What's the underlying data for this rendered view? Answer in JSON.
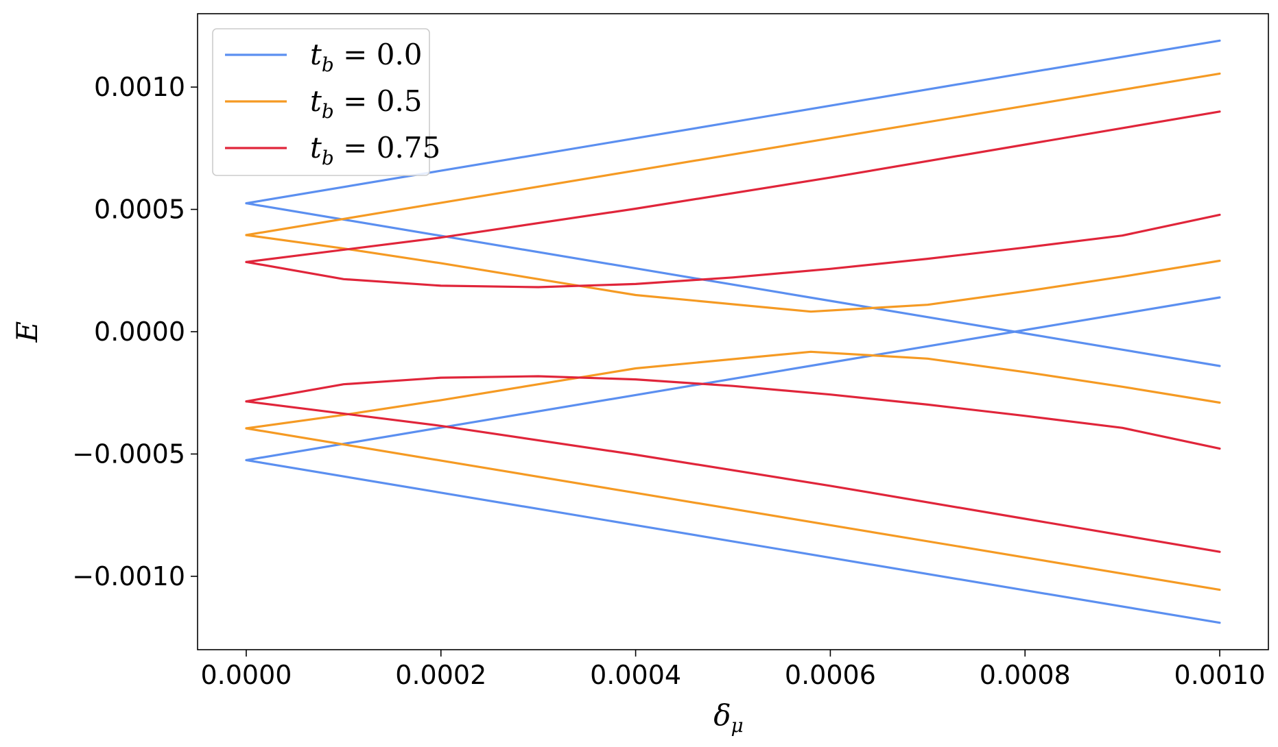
{
  "chart_data": {
    "type": "line",
    "title": "",
    "xlabel": "δ",
    "xlabel_sub": "μ",
    "ylabel": "E",
    "xlim": [
      -5e-05,
      0.00105
    ],
    "ylim": [
      -0.0013,
      0.0013
    ],
    "x_ticks": [
      0.0,
      0.0002,
      0.0004,
      0.0006,
      0.0008,
      0.001
    ],
    "x_tick_labels": [
      "0.0000",
      "0.0002",
      "0.0004",
      "0.0006",
      "0.0008",
      "0.0010"
    ],
    "y_ticks": [
      -0.001,
      -0.0005,
      0.0,
      0.0005,
      0.001
    ],
    "y_tick_labels": [
      "−0.0010",
      "−0.0005",
      "0.0000",
      "0.0005",
      "0.0010"
    ],
    "grid": false,
    "legend_position": "top-left",
    "series": [
      {
        "name": "t_b = 0.0",
        "legend_var": "t",
        "legend_sub": "b",
        "legend_value": "0.0",
        "color": "#5b8ff0",
        "branches": [
          {
            "x": [
              0.0,
              0.0002,
              0.0004,
              0.0006,
              0.0008,
              0.001
            ],
            "y": [
              0.000525,
              0.000658,
              0.000791,
              0.000924,
              0.001057,
              0.00119
            ]
          },
          {
            "x": [
              0.0,
              0.0002,
              0.0004,
              0.0006,
              0.0008,
              0.001
            ],
            "y": [
              0.000525,
              0.000392,
              0.000259,
              0.000126,
              -7e-06,
              -0.00014
            ]
          },
          {
            "x": [
              0.0,
              0.0002,
              0.0004,
              0.0006,
              0.0008,
              0.001
            ],
            "y": [
              -0.000525,
              -0.000392,
              -0.000259,
              -0.000126,
              7e-06,
              0.00014
            ]
          },
          {
            "x": [
              0.0,
              0.0002,
              0.0004,
              0.0006,
              0.0008,
              0.001
            ],
            "y": [
              -0.000525,
              -0.000658,
              -0.000791,
              -0.000924,
              -0.001057,
              -0.00119
            ]
          }
        ]
      },
      {
        "name": "t_b = 0.5",
        "legend_var": "t",
        "legend_sub": "b",
        "legend_value": "0.5",
        "color": "#f59a23",
        "branches": [
          {
            "x": [
              0.0,
              0.0002,
              0.0004,
              0.0006,
              0.0008,
              0.001
            ],
            "y": [
              0.000395,
              0.000527,
              0.000659,
              0.000791,
              0.000923,
              0.001055
            ]
          },
          {
            "x": [
              0.0,
              0.0001,
              0.0002,
              0.0003,
              0.0004,
              0.00058,
              0.0007,
              0.0008,
              0.0009,
              0.001
            ],
            "y": [
              0.000395,
              0.00034,
              0.00028,
              0.000215,
              0.00015,
              8.2e-05,
              0.00011,
              0.000165,
              0.000225,
              0.00029
            ]
          },
          {
            "x": [
              0.0,
              0.0001,
              0.0002,
              0.0003,
              0.0004,
              0.00058,
              0.0007,
              0.0008,
              0.0009,
              0.001
            ],
            "y": [
              -0.000395,
              -0.00034,
              -0.00028,
              -0.000215,
              -0.00015,
              -8.2e-05,
              -0.00011,
              -0.000165,
              -0.000225,
              -0.00029
            ]
          },
          {
            "x": [
              0.0,
              0.0002,
              0.0004,
              0.0006,
              0.0008,
              0.001
            ],
            "y": [
              -0.000395,
              -0.000527,
              -0.000659,
              -0.000791,
              -0.000923,
              -0.001055
            ]
          }
        ]
      },
      {
        "name": "t_b = 0.75",
        "legend_var": "t",
        "legend_sub": "b",
        "legend_value": "0.75",
        "color": "#e0253a",
        "branches": [
          {
            "x": [
              0.0,
              0.0002,
              0.0004,
              0.0006,
              0.0008,
              0.001
            ],
            "y": [
              0.000285,
              0.000385,
              0.000503,
              0.00063,
              0.000765,
              0.0009
            ]
          },
          {
            "x": [
              0.0,
              0.0001,
              0.0002,
              0.0003,
              0.0004,
              0.0005,
              0.0006,
              0.0007,
              0.0008,
              0.0009,
              0.001
            ],
            "y": [
              0.000285,
              0.000215,
              0.000188,
              0.000182,
              0.000195,
              0.000222,
              0.000257,
              0.000298,
              0.000344,
              0.000393,
              0.000478
            ]
          },
          {
            "x": [
              0.0,
              0.0001,
              0.0002,
              0.0003,
              0.0004,
              0.0005,
              0.0006,
              0.0007,
              0.0008,
              0.0009,
              0.001
            ],
            "y": [
              -0.000285,
              -0.000215,
              -0.000188,
              -0.000182,
              -0.000195,
              -0.000222,
              -0.000257,
              -0.000298,
              -0.000344,
              -0.000393,
              -0.000478
            ]
          },
          {
            "x": [
              0.0,
              0.0002,
              0.0004,
              0.0006,
              0.0008,
              0.001
            ],
            "y": [
              -0.000285,
              -0.000385,
              -0.000503,
              -0.00063,
              -0.000765,
              -0.0009
            ]
          }
        ]
      }
    ]
  }
}
